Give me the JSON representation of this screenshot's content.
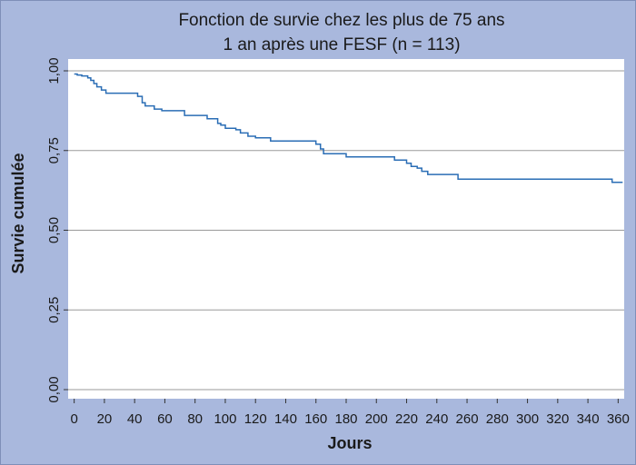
{
  "chart_data": {
    "type": "line",
    "step": true,
    "title_lines": [
      "Fonction de survie chez les plus de 75 ans",
      "1 an après une FESF (n = 113)"
    ],
    "xlabel": "Jours",
    "ylabel": "Survie cumulée",
    "xlim": [
      -4,
      364
    ],
    "ylim": [
      0,
      1
    ],
    "x_ticks": [
      0,
      20,
      40,
      60,
      80,
      100,
      120,
      140,
      160,
      180,
      200,
      220,
      240,
      260,
      280,
      300,
      320,
      340,
      360
    ],
    "y_ticks": [
      {
        "value": 0,
        "label": "0,00"
      },
      {
        "value": 0.25,
        "label": "0,25"
      },
      {
        "value": 0.5,
        "label": "0,50"
      },
      {
        "value": 0.75,
        "label": "0,75"
      },
      {
        "value": 1,
        "label": "1,00"
      }
    ],
    "grid": "horizontal",
    "line_color": "#2a6db5",
    "background": "#a9b8dd",
    "plot_background": "#ffffff",
    "series": [
      {
        "x": [
          0,
          2,
          5,
          9,
          11,
          13,
          15,
          18,
          21,
          42,
          45,
          47,
          53,
          58,
          73,
          88,
          95,
          97,
          100,
          107,
          110,
          115,
          120,
          130,
          160,
          163,
          165,
          180,
          212,
          220,
          223,
          227,
          230,
          234,
          254,
          356,
          363
        ],
        "y": [
          0.99,
          0.987,
          0.984,
          0.978,
          0.97,
          0.96,
          0.95,
          0.94,
          0.93,
          0.92,
          0.9,
          0.89,
          0.88,
          0.875,
          0.86,
          0.85,
          0.835,
          0.83,
          0.82,
          0.815,
          0.805,
          0.795,
          0.79,
          0.78,
          0.77,
          0.755,
          0.74,
          0.73,
          0.72,
          0.71,
          0.7,
          0.695,
          0.685,
          0.675,
          0.66,
          0.65,
          0.65
        ]
      }
    ]
  }
}
